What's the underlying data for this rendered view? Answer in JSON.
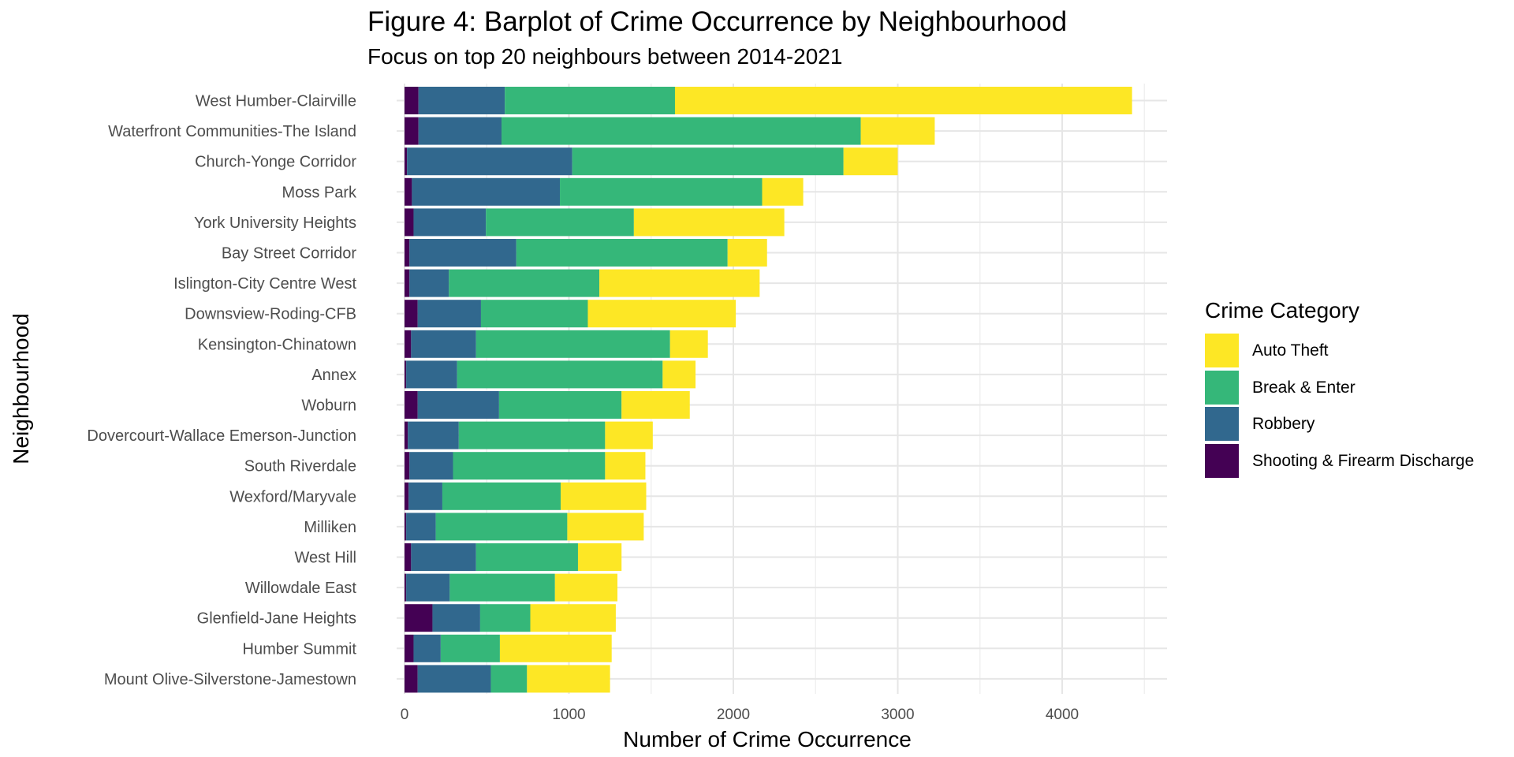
{
  "chart_data": {
    "type": "bar",
    "orientation": "horizontal",
    "stacked": true,
    "title": "Figure 4: Barplot of Crime Occurrence by Neighbourhood",
    "subtitle": "Focus on top 20 neighbours between 2014-2021",
    "xlabel": "Number of Crime Occurrence",
    "ylabel": "Neighbourhood",
    "xlim": [
      0,
      4650
    ],
    "xticks": [
      0,
      1000,
      2000,
      3000,
      4000
    ],
    "grid": true,
    "legend_title": "Crime Category",
    "legend_position": "right",
    "categories": [
      "West Humber-Clairville",
      "Waterfront Communities-The Island",
      "Church-Yonge Corridor",
      "Moss Park",
      "York University Heights",
      "Bay Street Corridor",
      "Islington-City Centre West",
      "Downsview-Roding-CFB",
      "Kensington-Chinatown",
      "Annex",
      "Woburn",
      "Dovercourt-Wallace Emerson-Junction",
      "South Riverdale",
      "Wexford/Maryvale",
      "Milliken",
      "West Hill",
      "Willowdale East",
      "Glenfield-Jane Heights",
      "Humber Summit",
      "Mount Olive-Silverstone-Jamestown"
    ],
    "series": [
      {
        "name": "Shooting & Firearm Discharge",
        "color": "#440154",
        "values": [
          85,
          85,
          15,
          45,
          55,
          30,
          30,
          80,
          40,
          10,
          80,
          20,
          30,
          25,
          10,
          40,
          10,
          170,
          55,
          80
        ]
      },
      {
        "name": "Robbery",
        "color": "#31688E",
        "values": [
          525,
          505,
          1005,
          900,
          440,
          650,
          240,
          385,
          395,
          310,
          495,
          310,
          265,
          205,
          180,
          395,
          265,
          290,
          165,
          445
        ]
      },
      {
        "name": "Break & Enter",
        "color": "#35B779",
        "values": [
          1035,
          2185,
          1650,
          1230,
          900,
          1285,
          915,
          650,
          1180,
          1250,
          745,
          890,
          925,
          720,
          800,
          620,
          640,
          305,
          360,
          220
        ]
      },
      {
        "name": "Auto Theft",
        "color": "#FDE725",
        "values": [
          2780,
          450,
          330,
          250,
          915,
          240,
          975,
          900,
          230,
          200,
          415,
          290,
          245,
          520,
          465,
          265,
          380,
          520,
          680,
          505
        ]
      }
    ],
    "legend_order": [
      "Auto Theft",
      "Break & Enter",
      "Robbery",
      "Shooting & Firearm Discharge"
    ]
  }
}
